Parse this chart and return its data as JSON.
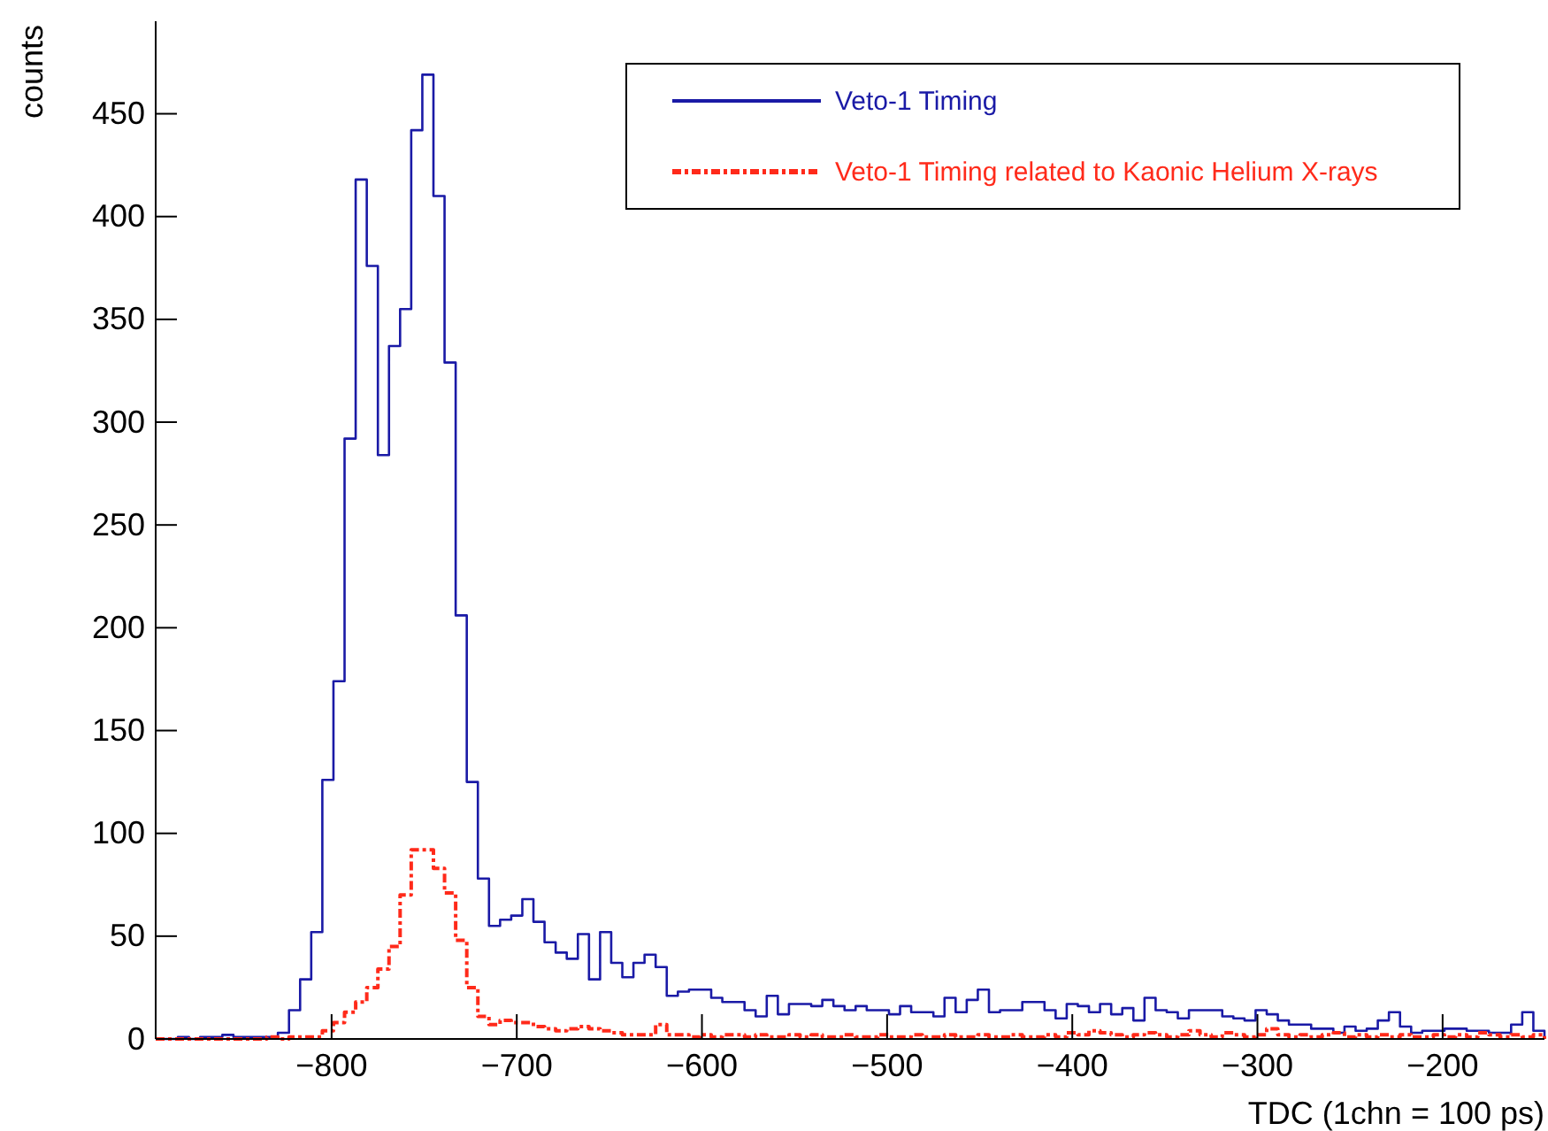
{
  "chart_data": {
    "type": "histogram",
    "xlabel": "TDC (1chn = 100 ps)",
    "ylabel": "counts",
    "bins": [
      -895,
      -889,
      -883,
      -877,
      -871,
      -865,
      -859,
      -853,
      -847,
      -841,
      -835,
      -829,
      -823,
      -817,
      -811,
      -805,
      -799,
      -793,
      -787,
      -781,
      -775,
      -769,
      -763,
      -757,
      -751,
      -745,
      -739,
      -733,
      -727,
      -721,
      -715,
      -709,
      -703,
      -697,
      -691,
      -685,
      -679,
      -673,
      -667,
      -661,
      -655,
      -649,
      -643,
      -637,
      -631,
      -625,
      -619,
      -613,
      -607,
      -601,
      -595,
      -589,
      -583,
      -577,
      -571,
      -565,
      -559,
      -553,
      -547,
      -541,
      -535,
      -529,
      -523,
      -517,
      -511,
      -505,
      -499,
      -493,
      -487,
      -481,
      -475,
      -469,
      -463,
      -457,
      -451,
      -445,
      -439,
      -433,
      -427,
      -421,
      -415,
      -409,
      -403,
      -397,
      -391,
      -385,
      -379,
      -373,
      -367,
      -361,
      -355,
      -349,
      -343,
      -337,
      -331,
      -325,
      -319,
      -313,
      -307,
      -301,
      -295,
      -289,
      -283,
      -277,
      -271,
      -265,
      -259,
      -253,
      -247,
      -241,
      -235,
      -229,
      -223,
      -217,
      -211,
      -205,
      -199,
      -193,
      -187,
      -181,
      -175,
      -169,
      -163,
      -157,
      -151,
      -145
    ],
    "series": [
      {
        "name": "Veto-1 Timing",
        "color": "#1a1aa6",
        "line_style": "solid",
        "values": [
          0,
          0,
          1,
          0,
          1,
          1,
          2,
          1,
          1,
          1,
          1,
          3,
          14,
          29,
          52,
          126,
          174,
          292,
          418,
          376,
          284,
          337,
          355,
          442,
          469,
          410,
          329,
          206,
          125,
          78,
          55,
          58,
          60,
          68,
          57,
          47,
          42,
          39,
          51,
          29,
          52,
          37,
          30,
          37,
          41,
          35,
          21,
          23,
          24,
          24,
          20,
          18,
          18,
          14,
          11,
          21,
          12,
          17,
          17,
          16,
          19,
          16,
          14,
          16,
          14,
          14,
          12,
          16,
          13,
          13,
          11,
          20,
          13,
          19,
          24,
          13,
          14,
          14,
          18,
          18,
          14,
          10,
          17,
          16,
          13,
          17,
          12,
          15,
          9,
          20,
          14,
          13,
          10,
          14,
          14,
          14,
          11,
          10,
          9,
          14,
          12,
          9,
          7,
          7,
          5,
          5,
          3,
          6,
          4,
          5,
          9,
          13,
          6,
          3,
          4,
          4,
          5,
          5,
          4,
          4,
          3,
          3,
          7,
          13,
          4
        ]
      },
      {
        "name": "Veto-1 Timing related to Kaonic Helium X-rays",
        "color": "#ff2a1a",
        "line_style": "dashed",
        "values": [
          0,
          0,
          0,
          0,
          0,
          0,
          0,
          0,
          0,
          0,
          1,
          0,
          1,
          1,
          1,
          4,
          8,
          13,
          18,
          25,
          34,
          45,
          70,
          92,
          92,
          83,
          71,
          48,
          25,
          11,
          7,
          9,
          8,
          8,
          6,
          5,
          4,
          5,
          6,
          5,
          4,
          3,
          2,
          2,
          2,
          7,
          2,
          2,
          1,
          2,
          1,
          2,
          2,
          1,
          2,
          1,
          1,
          2,
          1,
          2,
          1,
          1,
          2,
          1,
          1,
          2,
          1,
          1,
          2,
          1,
          1,
          2,
          1,
          1,
          2,
          1,
          1,
          2,
          1,
          1,
          2,
          1,
          3,
          2,
          4,
          3,
          2,
          1,
          2,
          3,
          2,
          1,
          2,
          4,
          2,
          1,
          3,
          2,
          1,
          2,
          5,
          2,
          1,
          2,
          1,
          2,
          3,
          1,
          2,
          1,
          2,
          1,
          2,
          1,
          1,
          2,
          1,
          2,
          1,
          3,
          2,
          1,
          2,
          1,
          2
        ]
      }
    ],
    "xlim": [
      -895,
      -145
    ],
    "ylim": [
      0,
      495
    ],
    "xticks": [
      -800,
      -700,
      -600,
      -500,
      -400,
      -300,
      -200
    ],
    "yticks": [
      0,
      50,
      100,
      150,
      200,
      250,
      300,
      350,
      400,
      450
    ],
    "legend": "top right"
  }
}
